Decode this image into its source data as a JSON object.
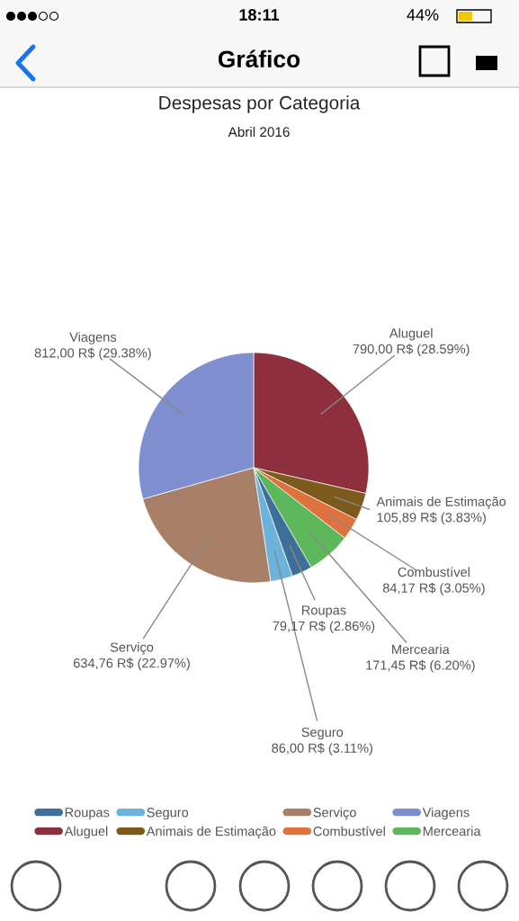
{
  "chart_data": {
    "type": "pie",
    "title": "Despesas por Categoria",
    "subtitle": "Abril 2016",
    "categories": [
      "Aluguel",
      "Animais de Estimação",
      "Combustível",
      "Mercearia",
      "Roupas",
      "Seguro",
      "Serviço",
      "Viagens"
    ],
    "values": [
      790.0,
      105.89,
      84.17,
      171.45,
      79.17,
      86.0,
      634.76,
      812.0
    ],
    "value_labels": [
      "790,00 R$ (28.59%)",
      "105,89 R$ (3.83%)",
      "84,17 R$ (3.05%)",
      "171,45 R$ (6.20%)",
      "79,17 R$ (2.86%)",
      "86,00 R$ (3.11%)",
      "634,76 R$ (22.97%)",
      "812,00 R$ (29.38%)"
    ],
    "colors": [
      "#8e2f3e",
      "#7d5a1c",
      "#e0723f",
      "#5cb85a",
      "#3d6f98",
      "#6cb3dc",
      "#a88068",
      "#7f8ecf"
    ],
    "legend": "bottom",
    "annotations": [
      "18:11",
      "44%",
      "Gráfico"
    ]
  }
}
